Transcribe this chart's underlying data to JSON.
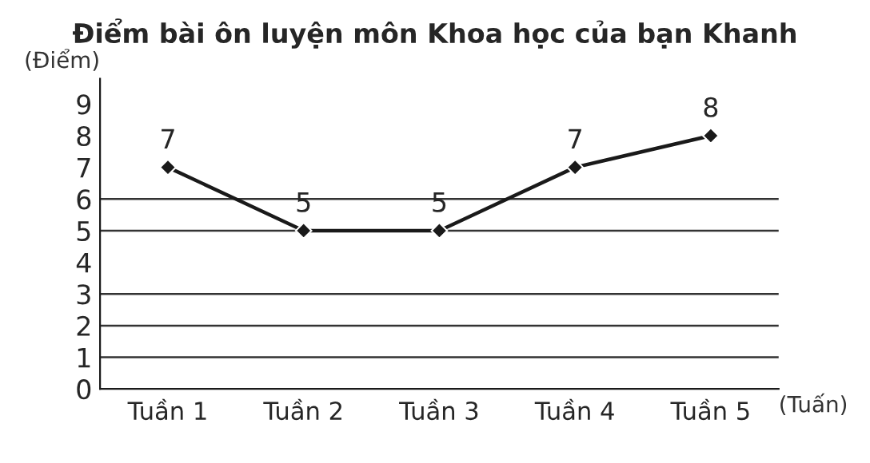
{
  "chart_data": {
    "type": "line",
    "title": "Điểm bài ôn luyện môn Khoa học của bạn Khanh",
    "xlabel": "(Tuấn)",
    "ylabel": "(Điểm)",
    "categories": [
      "Tuần 1",
      "Tuần 2",
      "Tuần 3",
      "Tuần 4",
      "Tuần 5"
    ],
    "series": [
      {
        "color": "#1a1a1a",
        "values": [
          7,
          5,
          5,
          7,
          8
        ]
      }
    ],
    "ylim": [
      0,
      9.8
    ],
    "yticks": [
      0,
      1,
      2,
      3,
      4,
      5,
      6,
      7,
      8,
      9
    ],
    "ref_lines": [
      {
        "axis": "y",
        "value": 1,
        "color": "#333333"
      },
      {
        "axis": "y",
        "value": 2,
        "color": "#333333"
      },
      {
        "axis": "y",
        "value": 3,
        "color": "#333333"
      },
      {
        "axis": "y",
        "value": 5,
        "color": "#333333"
      },
      {
        "axis": "y",
        "value": 6,
        "color": "#333333"
      }
    ],
    "data_labels": true,
    "marker": "diamond",
    "line_style": "solid",
    "grid": false,
    "legend": false
  }
}
